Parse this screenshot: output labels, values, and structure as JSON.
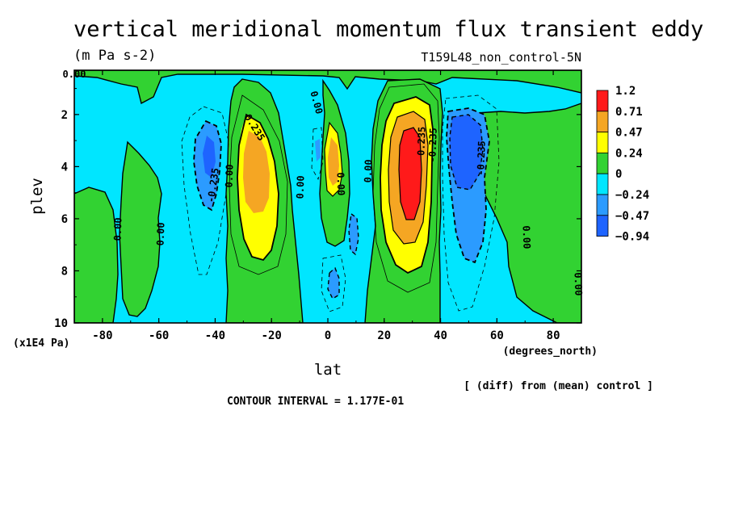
{
  "chart_data": {
    "type": "heatmap",
    "title": "vertical meridional momentum flux transient eddy",
    "units": "(m Pa s-2)",
    "experiment": "T159L48_non_control-5N",
    "xlabel": "lat",
    "x_units": "(degrees_north)",
    "ylabel": "plev",
    "y_units": "(x1E4 Pa)",
    "xlim": [
      -90,
      90
    ],
    "ylim": [
      10,
      0.3
    ],
    "x_ticks": [
      "-80",
      "-60",
      "-40",
      "-20",
      "0",
      "20",
      "40",
      "60",
      "80"
    ],
    "y_ticks": [
      "2",
      "4",
      "6",
      "8",
      "10"
    ],
    "colorbar": {
      "levels": [
        "1.2",
        "0.71",
        "0.47",
        "0.24",
        "0",
        "−0.24",
        "−0.47",
        "−0.94"
      ],
      "colors": [
        "#ff1a1a",
        "#f5a623",
        "#ffff00",
        "#32d232",
        "#00e6ff",
        "#2b9bff",
        "#1e64ff"
      ]
    },
    "contour_labels": [
      "0.00",
      "0.235",
      "-0.235",
      "-0.235",
      "-0.235",
      "0.00",
      "0.00",
      "0.00",
      "0.00",
      "0.00",
      "0.00",
      "0.00",
      "0.00",
      "0.235",
      "0.00"
    ],
    "features": [
      {
        "lat": -27,
        "plev": 4.0,
        "value": 0.6
      },
      {
        "lat": -43,
        "plev": 3.6,
        "value": -0.35
      },
      {
        "lat": 3,
        "plev": 3.8,
        "value": 0.55
      },
      {
        "lat": 29,
        "plev": 4.2,
        "value": 1.1
      },
      {
        "lat": 45,
        "plev": 3.8,
        "value": -0.6
      },
      {
        "lat": 10,
        "plev": 6.3,
        "value": -0.45
      },
      {
        "lat": 2,
        "plev": 8.5,
        "value": -0.4
      }
    ],
    "contour_interval": "CONTOUR INTERVAL = 1.177E-01",
    "footnote": "[ (diff) from (mean) control ]"
  }
}
